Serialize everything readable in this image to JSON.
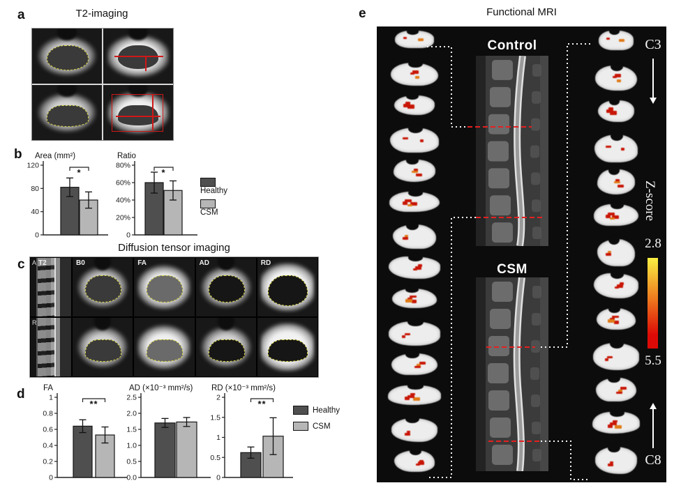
{
  "figure": {
    "panels": {
      "a": {
        "label": "a",
        "title": "T2-imaging"
      },
      "b": {
        "label": "b"
      },
      "c": {
        "label": "c",
        "title": "Diffusion tensor imaging",
        "corner_row1": "A",
        "sagittal_label": "T2",
        "axial_labels": [
          "B0",
          "FA",
          "AD",
          "RD"
        ],
        "corner_row2": "R"
      },
      "d": {
        "label": "d"
      },
      "e": {
        "label": "e",
        "title": "Functional MRI",
        "group_top": "Control",
        "group_bottom": "CSM",
        "level_top": "C3",
        "level_bottom": "C8",
        "zscore_label": "Z-score",
        "colorbar_min": "2.8",
        "colorbar_max": "5.5",
        "left_slice_count": 14,
        "right_slice_count": 13
      }
    }
  },
  "legend": {
    "healthy": "Healthy",
    "csm": "CSM"
  },
  "colors": {
    "healthy_bar": "#4f4f4f",
    "csm_bar": "#b6b6b6",
    "activation_red": "#c81606",
    "activation_orange": "#e07b18",
    "colorbar_top": "#f9f043",
    "colorbar_mid": "#ee7a1e",
    "colorbar_bottom": "#dc0a06",
    "red_dashed": "#e62020",
    "outline_yellow": "#d8d33e"
  },
  "chart_data": [
    {
      "id": "area",
      "type": "bar",
      "title": "Area (mm²)",
      "categories": [
        "Healthy",
        "CSM"
      ],
      "values": [
        82,
        60
      ],
      "errors": [
        16,
        14
      ],
      "ylim": [
        0,
        120
      ],
      "ytick_labels": [
        "0",
        "40",
        "80",
        "120"
      ],
      "significance": "*"
    },
    {
      "id": "ratio",
      "type": "bar",
      "title": "Ratio",
      "categories": [
        "Healthy",
        "CSM"
      ],
      "values": [
        60,
        51
      ],
      "errors": [
        12,
        11
      ],
      "ylim": [
        0,
        80
      ],
      "ytick_labels": [
        "0",
        "20%",
        "40%",
        "60%",
        "80%"
      ],
      "significance": "*"
    },
    {
      "id": "fa",
      "type": "bar",
      "title": "FA",
      "categories": [
        "Healthy",
        "CSM"
      ],
      "values": [
        0.64,
        0.53
      ],
      "errors": [
        0.08,
        0.1
      ],
      "ylim": [
        0,
        1
      ],
      "ytick_labels": [
        "0",
        "0.2",
        "0.4",
        "0.6",
        "0.8",
        "1"
      ],
      "significance": "**"
    },
    {
      "id": "ad",
      "type": "bar",
      "title": "AD (×10⁻³ mm²/s)",
      "categories": [
        "Healthy",
        "CSM"
      ],
      "values": [
        1.7,
        1.73
      ],
      "errors": [
        0.14,
        0.14
      ],
      "ylim": [
        0,
        2.5
      ],
      "ytick_labels": [
        "0.0",
        "0.5",
        "1.0",
        "1.5",
        "2.0",
        "2.5"
      ],
      "significance": null
    },
    {
      "id": "rd",
      "type": "bar",
      "title": "RD (×10⁻³ mm²/s)",
      "categories": [
        "Healthy",
        "CSM"
      ],
      "values": [
        0.62,
        1.03
      ],
      "errors": [
        0.14,
        0.46
      ],
      "ylim": [
        0,
        2
      ],
      "ytick_labels": [
        "0",
        "0.5",
        "1",
        "1.5",
        "2"
      ],
      "significance": "**"
    }
  ]
}
